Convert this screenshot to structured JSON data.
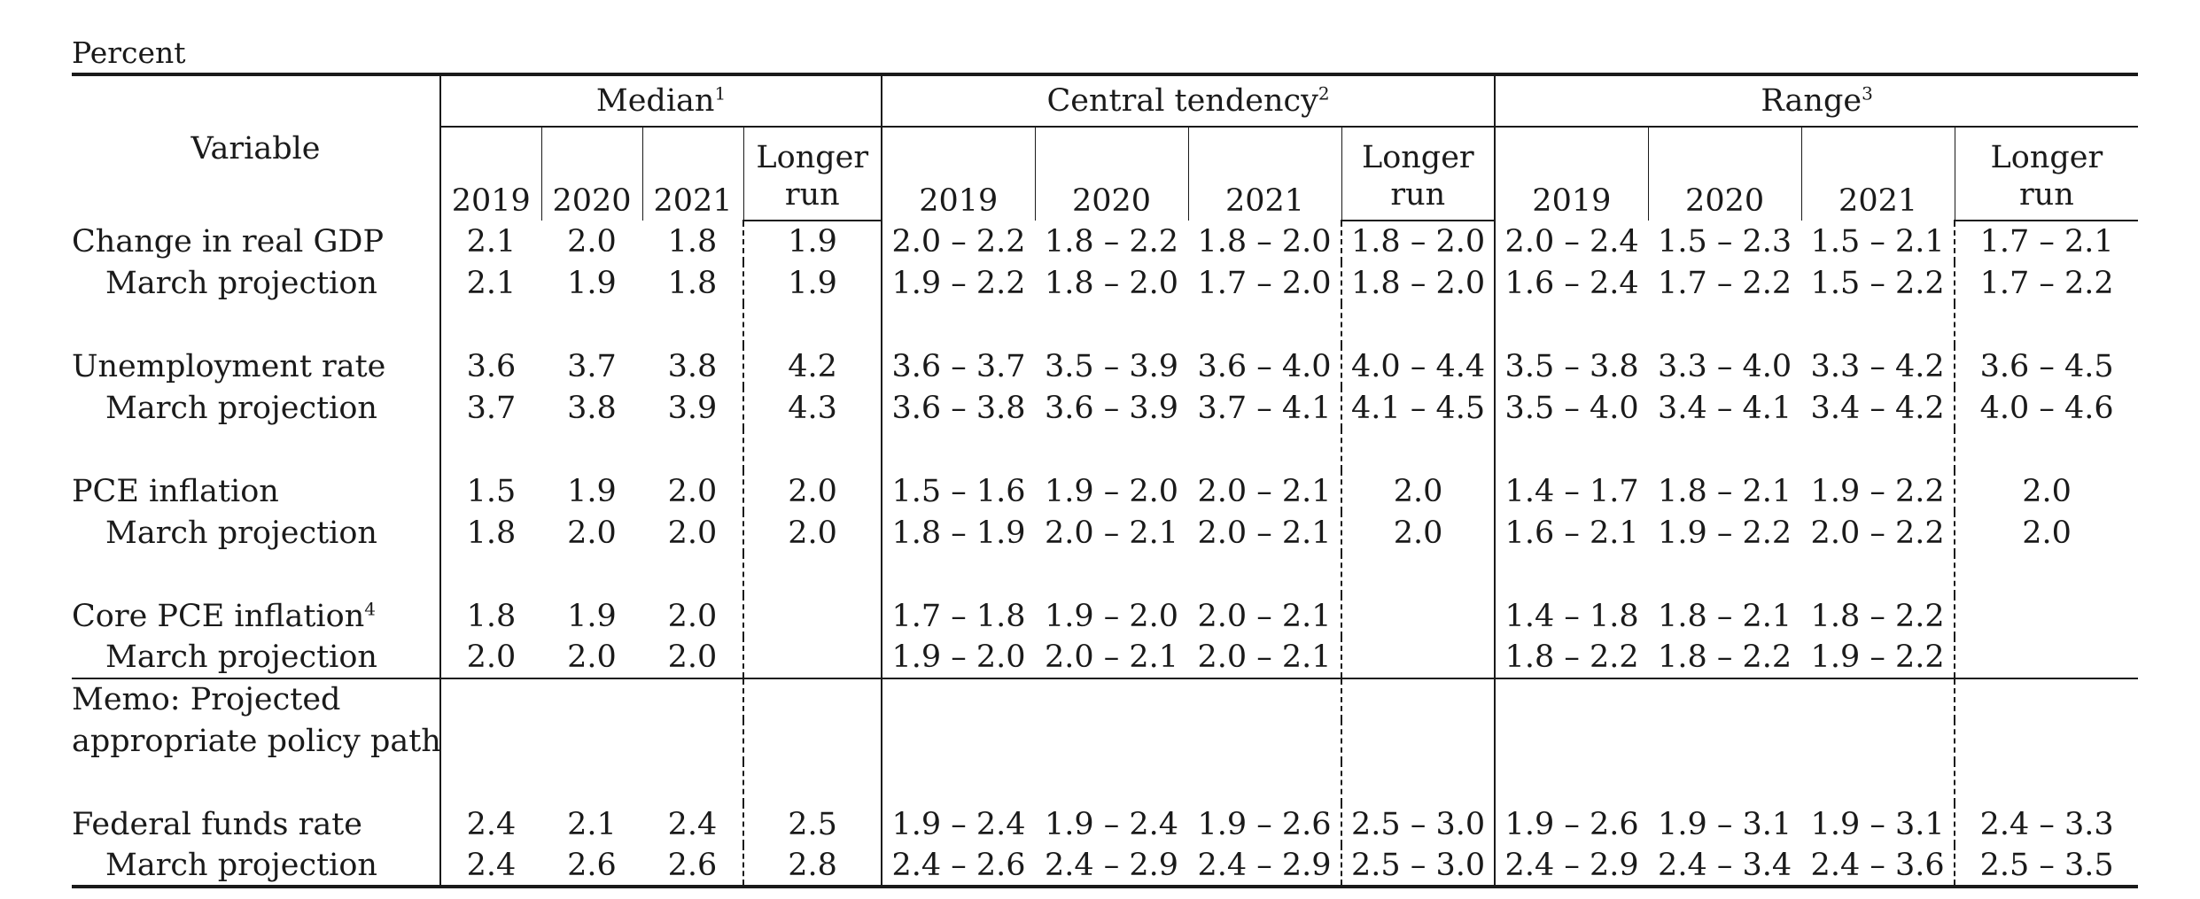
{
  "unit_label": "Percent",
  "header": {
    "variable": "Variable",
    "groups": [
      {
        "label": "Median",
        "note": "1"
      },
      {
        "label": "Central tendency",
        "note": "2"
      },
      {
        "label": "Range",
        "note": "3"
      }
    ],
    "years": [
      "2019",
      "2020",
      "2021"
    ],
    "longer_run_line1": "Longer",
    "longer_run_line2": "run"
  },
  "rows": [
    {
      "label": "Change in real GDP",
      "note": "",
      "values": [
        "2.1",
        "2.0",
        "1.8",
        "1.9",
        "2.0 – 2.2",
        "1.8 – 2.2",
        "1.8 – 2.0",
        "1.8 – 2.0",
        "2.0 – 2.4",
        "1.5 – 2.3",
        "1.5 – 2.1",
        "1.7 – 2.1"
      ]
    },
    {
      "label": "March projection",
      "note": "",
      "values": [
        "2.1",
        "1.9",
        "1.8",
        "1.9",
        "1.9 – 2.2",
        "1.8 – 2.0",
        "1.7 – 2.0",
        "1.8 – 2.0",
        "1.6 – 2.4",
        "1.7 – 2.2",
        "1.5 – 2.2",
        "1.7 – 2.2"
      ]
    },
    {
      "label": "Unemployment rate",
      "note": "",
      "values": [
        "3.6",
        "3.7",
        "3.8",
        "4.2",
        "3.6 – 3.7",
        "3.5 – 3.9",
        "3.6 – 4.0",
        "4.0 – 4.4",
        "3.5 – 3.8",
        "3.3 – 4.0",
        "3.3 – 4.2",
        "3.6 – 4.5"
      ]
    },
    {
      "label": "March projection",
      "note": "",
      "values": [
        "3.7",
        "3.8",
        "3.9",
        "4.3",
        "3.6 – 3.8",
        "3.6 – 3.9",
        "3.7 – 4.1",
        "4.1 – 4.5",
        "3.5 – 4.0",
        "3.4 – 4.1",
        "3.4 – 4.2",
        "4.0 – 4.6"
      ]
    },
    {
      "label": "PCE inflation",
      "note": "",
      "values": [
        "1.5",
        "1.9",
        "2.0",
        "2.0",
        "1.5 – 1.6",
        "1.9 – 2.0",
        "2.0 – 2.1",
        "2.0",
        "1.4 – 1.7",
        "1.8 – 2.1",
        "1.9 – 2.2",
        "2.0"
      ]
    },
    {
      "label": "March projection",
      "note": "",
      "values": [
        "1.8",
        "2.0",
        "2.0",
        "2.0",
        "1.8 – 1.9",
        "2.0 – 2.1",
        "2.0 – 2.1",
        "2.0",
        "1.6 – 2.1",
        "1.9 – 2.2",
        "2.0 – 2.2",
        "2.0"
      ]
    },
    {
      "label": "Core PCE inflation",
      "note": "4",
      "values": [
        "1.8",
        "1.9",
        "2.0",
        "",
        "1.7 – 1.8",
        "1.9 – 2.0",
        "2.0 – 2.1",
        "",
        "1.4 – 1.8",
        "1.8 – 2.1",
        "1.8 – 2.2",
        ""
      ]
    },
    {
      "label": "March projection",
      "note": "",
      "values": [
        "2.0",
        "2.0",
        "2.0",
        "",
        "1.9 – 2.0",
        "2.0 – 2.1",
        "2.0 – 2.1",
        "",
        "1.8 – 2.2",
        "1.8 – 2.2",
        "1.9 – 2.2",
        ""
      ]
    },
    {
      "label": "Federal funds rate",
      "note": "",
      "values": [
        "2.4",
        "2.1",
        "2.4",
        "2.5",
        "1.9 – 2.4",
        "1.9 – 2.4",
        "1.9 – 2.6",
        "2.5 – 3.0",
        "1.9 – 2.6",
        "1.9 – 3.1",
        "1.9 – 3.1",
        "2.4 – 3.3"
      ]
    },
    {
      "label": "March projection",
      "note": "",
      "values": [
        "2.4",
        "2.6",
        "2.6",
        "2.8",
        "2.4 – 2.6",
        "2.4 – 2.9",
        "2.4 – 2.9",
        "2.5 – 3.0",
        "2.4 – 2.9",
        "2.4 – 3.4",
        "2.4 – 3.6",
        "2.5 – 3.5"
      ]
    }
  ],
  "memo": {
    "line1": "Memo: Projected",
    "line2": "appropriate policy path"
  }
}
